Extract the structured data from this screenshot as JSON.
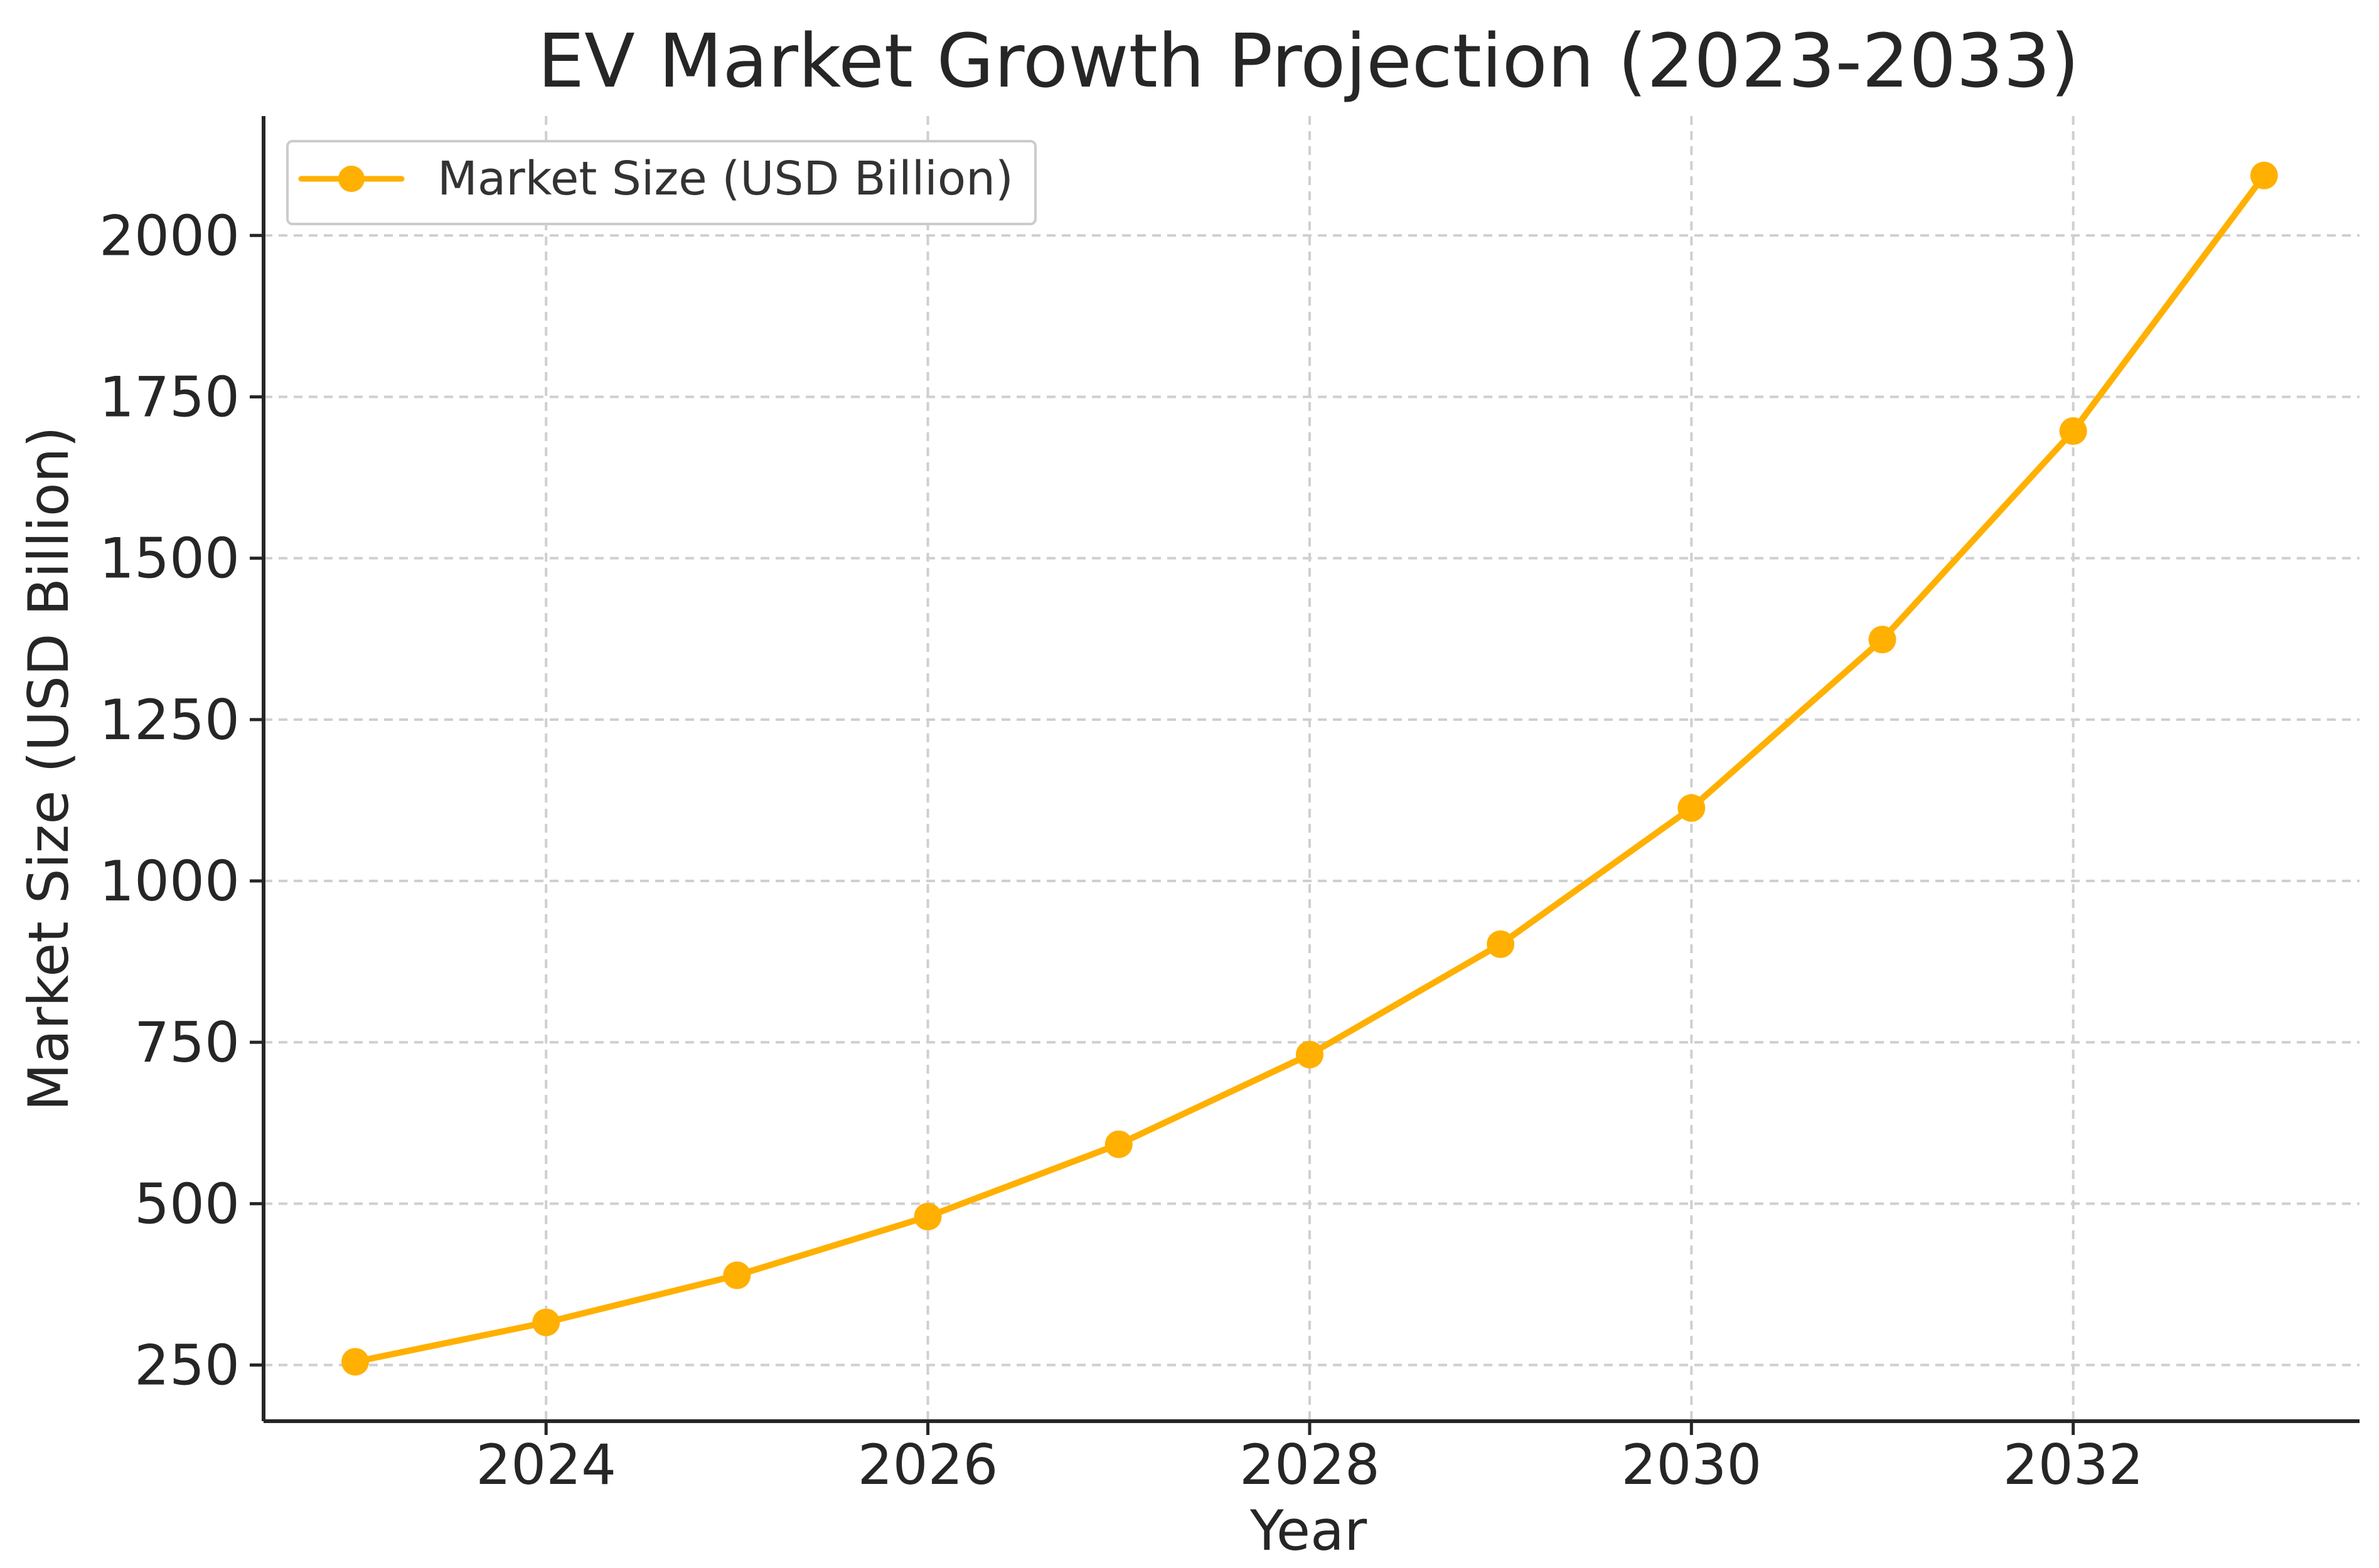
{
  "chart_data": {
    "type": "line",
    "title": "EV Market Growth Projection (2023-2033)",
    "xlabel": "Year",
    "ylabel": "Market Size (USD Billion)",
    "x": [
      2023,
      2024,
      2025,
      2026,
      2027,
      2028,
      2029,
      2030,
      2031,
      2032,
      2033
    ],
    "series": [
      {
        "name": "Market Size (USD Billion)",
        "color": "#FFB000",
        "marker": "circle",
        "values": [
          255,
          316,
          389,
          480,
          592,
          731,
          902,
          1113,
          1374,
          1697,
          2093
        ]
      }
    ],
    "xticks": [
      2024,
      2026,
      2028,
      2030,
      2032
    ],
    "yticks": [
      250,
      500,
      750,
      1000,
      1250,
      1500,
      1750,
      2000
    ],
    "xlim": [
      2022.52,
      2033.5
    ],
    "ylim": [
      163,
      2185
    ],
    "grid": true,
    "legend_position": "top-left"
  }
}
